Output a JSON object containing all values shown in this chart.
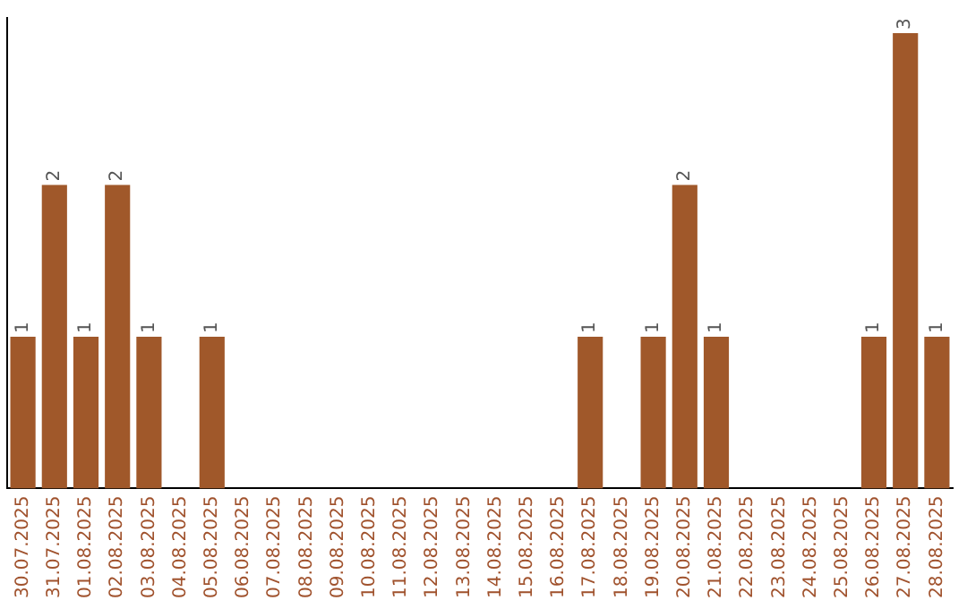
{
  "chart_data": {
    "type": "bar",
    "categories": [
      "30.07.2025",
      "31.07.2025",
      "01.08.2025",
      "02.08.2025",
      "03.08.2025",
      "04.08.2025",
      "05.08.2025",
      "06.08.2025",
      "07.08.2025",
      "08.08.2025",
      "09.08.2025",
      "10.08.2025",
      "11.08.2025",
      "12.08.2025",
      "13.08.2025",
      "14.08.2025",
      "15.08.2025",
      "16.08.2025",
      "17.08.2025",
      "18.08.2025",
      "19.08.2025",
      "20.08.2025",
      "21.08.2025",
      "22.08.2025",
      "23.08.2025",
      "24.08.2025",
      "25.08.2025",
      "26.08.2025",
      "27.08.2025",
      "28.08.2025"
    ],
    "values": [
      1,
      2,
      1,
      2,
      1,
      0,
      1,
      0,
      0,
      0,
      0,
      0,
      0,
      0,
      0,
      0,
      0,
      0,
      1,
      0,
      1,
      2,
      1,
      0,
      0,
      0,
      0,
      1,
      3,
      1
    ],
    "value_labels": [
      "1",
      "2",
      "1",
      "2",
      "1",
      null,
      "1",
      null,
      null,
      null,
      null,
      null,
      null,
      null,
      null,
      null,
      null,
      null,
      "1",
      null,
      "1",
      "2",
      "1",
      null,
      null,
      null,
      null,
      "1",
      "3",
      "1"
    ],
    "color": "#a0582a",
    "ylim": [
      0,
      3.1
    ],
    "tick_labels": "x",
    "grid": false,
    "legend": false
  }
}
